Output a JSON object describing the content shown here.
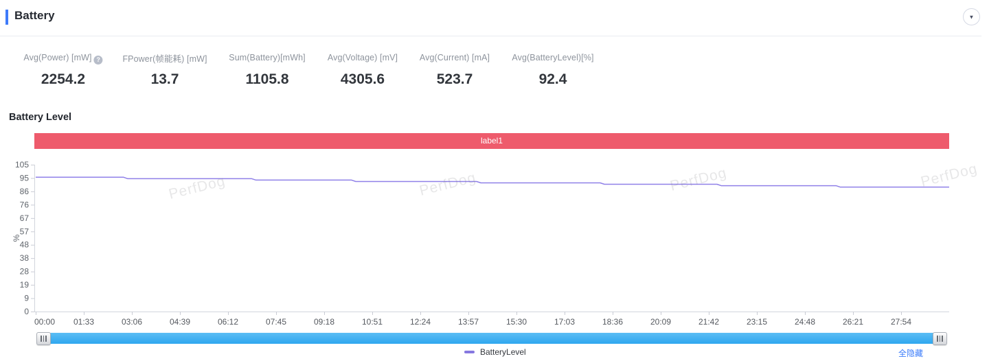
{
  "header": {
    "title": "Battery"
  },
  "metrics": [
    {
      "label": "Avg(Power) [mW]",
      "value": "2254.2",
      "help": true
    },
    {
      "label": "FPower(帧能耗) [mW]",
      "value": "13.7",
      "help": false
    },
    {
      "label": "Sum(Battery)[mWh]",
      "value": "1105.8",
      "help": false
    },
    {
      "label": "Avg(Voltage) [mV]",
      "value": "4305.6",
      "help": false
    },
    {
      "label": "Avg(Current) [mA]",
      "value": "523.7",
      "help": false
    },
    {
      "label": "Avg(BatteryLevel)[%]",
      "value": "92.4",
      "help": false
    }
  ],
  "chart_section": {
    "title": "Battery Level",
    "label_band": {
      "text": "label1",
      "color": "#ee5b6c"
    }
  },
  "chart_data": {
    "type": "line",
    "title": "Battery Level",
    "xlabel": "",
    "ylabel": "%",
    "ylim": [
      0,
      105
    ],
    "y_ticks": [
      105,
      95,
      86,
      76,
      67,
      57,
      48,
      38,
      28,
      19,
      9,
      0
    ],
    "x_tick_labels": [
      "00:00",
      "01:33",
      "03:06",
      "04:39",
      "06:12",
      "07:45",
      "09:18",
      "10:51",
      "12:24",
      "13:57",
      "15:30",
      "17:03",
      "18:36",
      "20:09",
      "21:42",
      "23:15",
      "24:48",
      "26:21",
      "27:54"
    ],
    "x_tick_interval_seconds": 93,
    "x_range_seconds": [
      0,
      1767
    ],
    "grid": false,
    "legend_position": "bottom",
    "series": [
      {
        "name": "BatteryLevel",
        "color": "#8f80e8",
        "unit": "%",
        "points": [
          [
            0,
            96
          ],
          [
            170,
            96
          ],
          [
            178,
            95
          ],
          [
            418,
            95
          ],
          [
            426,
            94
          ],
          [
            611,
            94
          ],
          [
            619,
            93
          ],
          [
            853,
            93
          ],
          [
            861,
            92
          ],
          [
            1092,
            92
          ],
          [
            1100,
            91
          ],
          [
            1318,
            91
          ],
          [
            1326,
            90
          ],
          [
            1548,
            90
          ],
          [
            1556,
            89
          ],
          [
            1767,
            89
          ]
        ]
      }
    ]
  },
  "legend": {
    "items": [
      {
        "label": "BatteryLevel",
        "color": "#8678e0"
      }
    ],
    "hide_all_label": "全隐藏"
  },
  "watermark": {
    "text": "PerfDog"
  },
  "icons": {
    "collapse": "chevron-down-icon",
    "help": "question-mark-icon",
    "grip": "grip-vertical-icon"
  },
  "colors": {
    "accent_blue": "#3e7bfa",
    "band_red": "#ee5b6c",
    "line_purple": "#8f80e8",
    "scrollbar_blue": "#3fadf1",
    "link_blue": "#3b7cfa"
  }
}
